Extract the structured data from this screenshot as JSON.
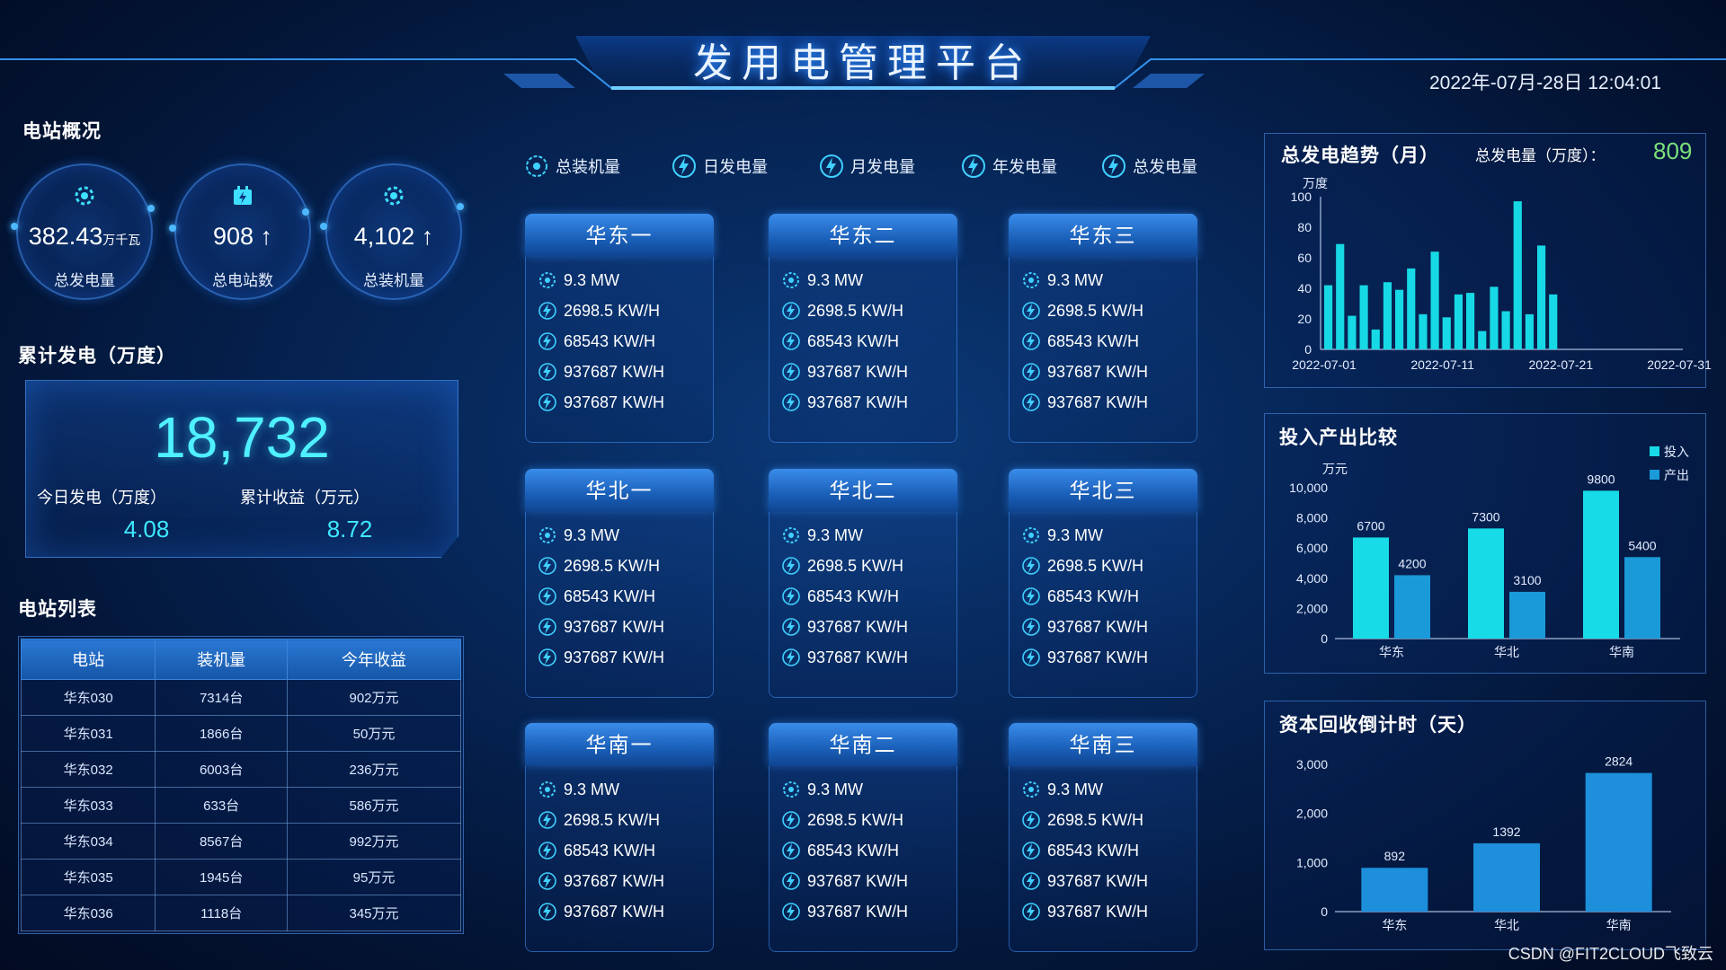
{
  "header": {
    "title": "发用电管理平台",
    "datetime": "2022年-07月-28日 12:04:01"
  },
  "overview": {
    "title": "电站概况",
    "items": [
      {
        "value": "382.43",
        "unit": "万千瓦",
        "label": "总发电量",
        "icon": "gear-icon"
      },
      {
        "value": "908 ↑",
        "unit": "",
        "label": "总电站数",
        "icon": "battery-icon"
      },
      {
        "value": "4,102 ↑",
        "unit": "",
        "label": "总装机量",
        "icon": "gear-icon"
      }
    ]
  },
  "cumulative": {
    "title": "累计发电（万度）",
    "total": "18,732",
    "today_label": "今日发电（万度）",
    "today_value": "4.08",
    "income_label": "累计收益（万元）",
    "income_value": "8.72"
  },
  "station_list": {
    "title": "电站列表",
    "columns": [
      "电站",
      "装机量",
      "今年收益"
    ],
    "rows": [
      [
        "华东030",
        "7314台",
        "902万元"
      ],
      [
        "华东031",
        "1866台",
        "50万元"
      ],
      [
        "华东032",
        "6003台",
        "236万元"
      ],
      [
        "华东033",
        "633台",
        "586万元"
      ],
      [
        "华东034",
        "8567台",
        "992万元"
      ],
      [
        "华东035",
        "1945台",
        "95万元"
      ],
      [
        "华东036",
        "1118台",
        "345万元"
      ]
    ]
  },
  "nav": [
    {
      "label": "总装机量",
      "icon": "gear-icon"
    },
    {
      "label": "日发电量",
      "icon": "bolt-day-icon"
    },
    {
      "label": "月发电量",
      "icon": "bolt-month-icon"
    },
    {
      "label": "年发电量",
      "icon": "bolt-year-icon"
    },
    {
      "label": "总发电量",
      "icon": "bolt-total-icon"
    }
  ],
  "regions": [
    {
      "name": "华东一",
      "rows": [
        "9.3 MW",
        "2698.5 KW/H",
        "68543 KW/H",
        "937687 KW/H",
        "937687 KW/H"
      ]
    },
    {
      "name": "华东二",
      "rows": [
        "9.3 MW",
        "2698.5 KW/H",
        "68543 KW/H",
        "937687 KW/H",
        "937687 KW/H"
      ]
    },
    {
      "name": "华东三",
      "rows": [
        "9.3 MW",
        "2698.5 KW/H",
        "68543 KW/H",
        "937687 KW/H",
        "937687 KW/H"
      ]
    },
    {
      "name": "华北一",
      "rows": [
        "9.3 MW",
        "2698.5 KW/H",
        "68543 KW/H",
        "937687 KW/H",
        "937687 KW/H"
      ]
    },
    {
      "name": "华北二",
      "rows": [
        "9.3 MW",
        "2698.5 KW/H",
        "68543 KW/H",
        "937687 KW/H",
        "937687 KW/H"
      ]
    },
    {
      "name": "华北三",
      "rows": [
        "9.3 MW",
        "2698.5 KW/H",
        "68543 KW/H",
        "937687 KW/H",
        "937687 KW/H"
      ]
    },
    {
      "name": "华南一",
      "rows": [
        "9.3 MW",
        "2698.5 KW/H",
        "68543 KW/H",
        "937687 KW/H",
        "937687 KW/H"
      ]
    },
    {
      "name": "华南二",
      "rows": [
        "9.3 MW",
        "2698.5 KW/H",
        "68543 KW/H",
        "937687 KW/H",
        "937687 KW/H"
      ]
    },
    {
      "name": "华南三",
      "rows": [
        "9.3 MW",
        "2698.5 KW/H",
        "68543 KW/H",
        "937687 KW/H",
        "937687 KW/H"
      ]
    }
  ],
  "trend": {
    "title": "总发电趋势（月）",
    "total_label": "总发电量（万度）：",
    "total_value": "809",
    "chart_data": {
      "type": "bar",
      "ylabel": "万度",
      "ylim": [
        0,
        100
      ],
      "yticks": [
        0,
        20,
        40,
        60,
        80,
        100
      ],
      "xticks": [
        "2022-07-01",
        "2022-07-11",
        "2022-07-21",
        "2022-07-31"
      ],
      "categories": [
        "07-01",
        "07-02",
        "07-03",
        "07-04",
        "07-05",
        "07-06",
        "07-07",
        "07-08",
        "07-09",
        "07-10",
        "07-11",
        "07-12",
        "07-13",
        "07-14",
        "07-15",
        "07-16",
        "07-17",
        "07-18",
        "07-19",
        "07-20"
      ],
      "values": [
        42,
        69,
        22,
        42,
        13,
        44,
        39,
        53,
        23,
        64,
        21,
        36,
        37,
        12,
        41,
        25,
        97,
        23,
        68,
        36
      ],
      "color": "#17d9e6"
    }
  },
  "io": {
    "title": "投入产出比较",
    "chart_data": {
      "type": "bar",
      "ylabel": "万元",
      "ylim": [
        0,
        10000
      ],
      "yticks": [
        "0",
        "2,000",
        "4,000",
        "6,000",
        "8,000",
        "10,000"
      ],
      "categories": [
        "华东",
        "华北",
        "华南"
      ],
      "series": [
        {
          "name": "投入",
          "values": [
            6700,
            7300,
            9800
          ],
          "color": "#17dbe6"
        },
        {
          "name": "产出",
          "values": [
            4200,
            3100,
            5400
          ],
          "color": "#1a9ad8"
        }
      ],
      "legend": "top-right"
    }
  },
  "payback": {
    "title": "资本回收倒计时（天）",
    "chart_data": {
      "type": "bar",
      "ylim": [
        0,
        3000
      ],
      "yticks": [
        "0",
        "1,000",
        "2,000",
        "3,000"
      ],
      "categories": [
        "华东",
        "华北",
        "华南"
      ],
      "values": [
        892,
        1392,
        2824
      ],
      "color": "#1d8fdb"
    }
  },
  "watermark": "CSDN @FIT2CLOUD飞致云"
}
